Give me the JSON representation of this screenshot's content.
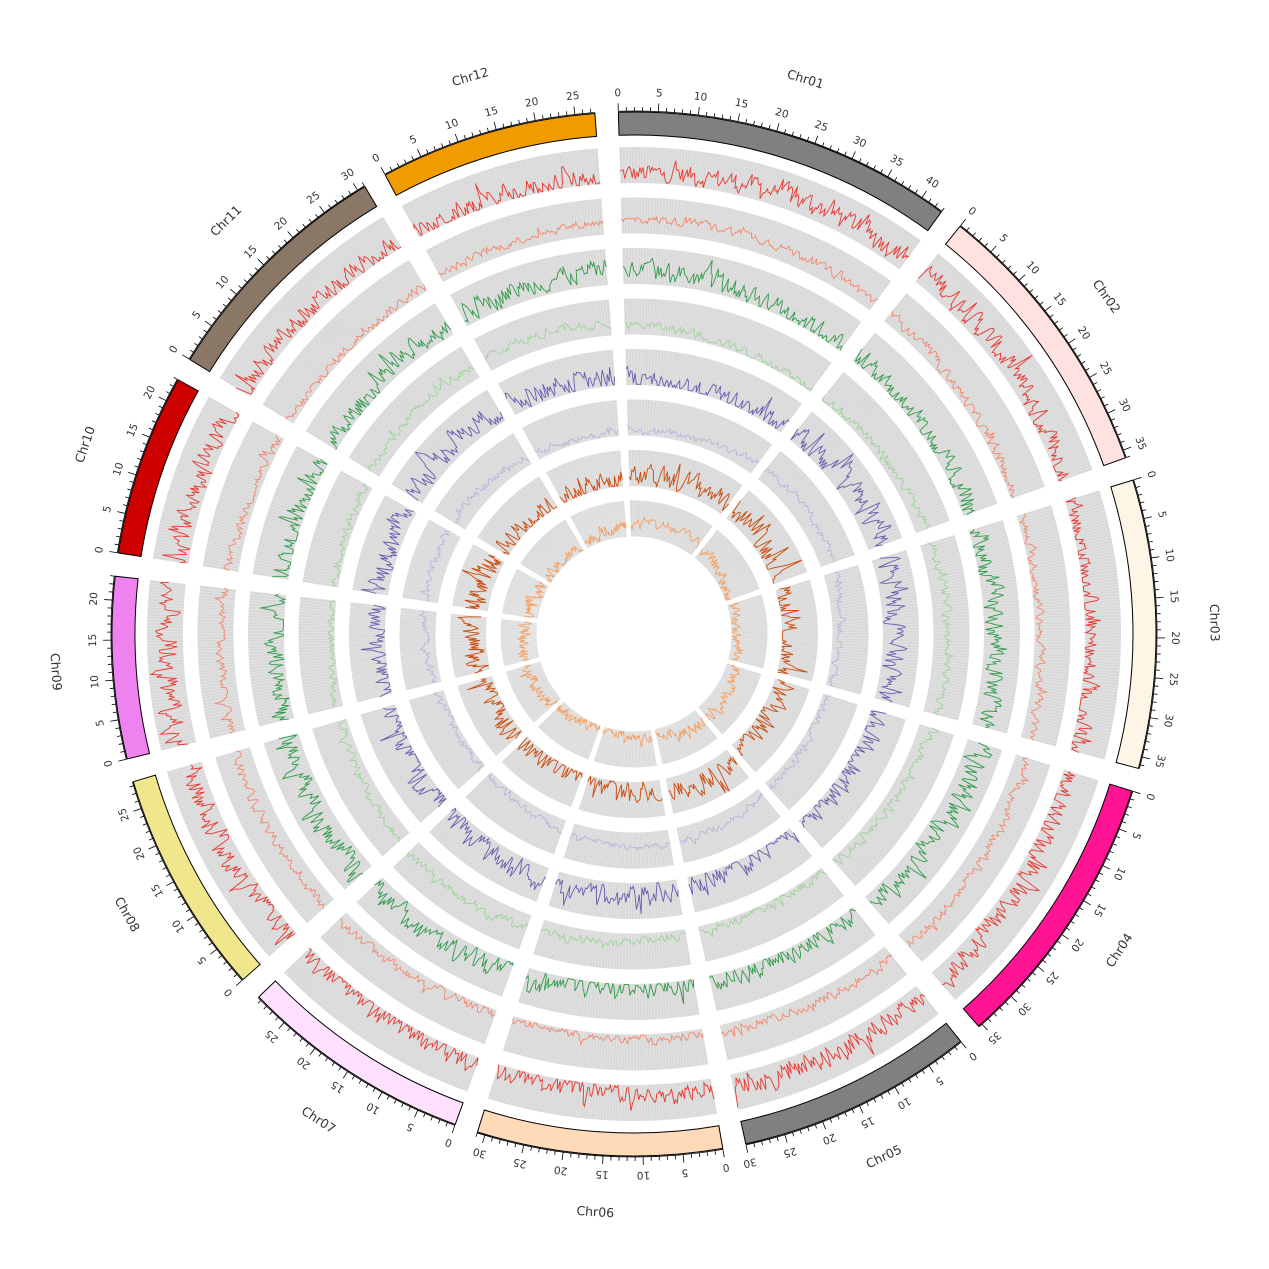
{
  "diagram": {
    "type": "circos",
    "chromosomes": [
      {
        "name": "Chr01",
        "length": 43,
        "color": "#808080"
      },
      {
        "name": "Chr02",
        "length": 36,
        "color": "#FFE1DF"
      },
      {
        "name": "Chr03",
        "length": 36.5,
        "color": "#FDF5E6"
      },
      {
        "name": "Chr04",
        "length": 35.5,
        "color": "#FF1493"
      },
      {
        "name": "Chr05",
        "length": 30,
        "color": "#808080"
      },
      {
        "name": "Chr06",
        "length": 31,
        "color": "#FFDAB9"
      },
      {
        "name": "Chr07",
        "length": 29.5,
        "color": "#FFE1FF"
      },
      {
        "name": "Chr08",
        "length": 28.5,
        "color": "#F0E68C"
      },
      {
        "name": "Chr09",
        "length": 23,
        "color": "#EE82EE"
      },
      {
        "name": "Chr10",
        "length": 23,
        "color": "#CD0000"
      },
      {
        "name": "Chr11",
        "length": 31,
        "color": "#8B7765"
      },
      {
        "name": "Chr12",
        "length": 27.5,
        "color": "#F09C00"
      }
    ],
    "tracks": [
      {
        "color": "#E8372F",
        "amplitude": 0.85
      },
      {
        "color": "#F4876C",
        "amplitude": 0.35
      },
      {
        "color": "#2E9B49",
        "amplitude": 0.85
      },
      {
        "color": "#9ED39A",
        "amplitude": 0.35
      },
      {
        "color": "#6A5BB0",
        "amplitude": 0.9
      },
      {
        "color": "#B9B4DC",
        "amplitude": 0.3
      },
      {
        "color": "#CC4A0A",
        "amplitude": 0.95
      },
      {
        "color": "#F5A162",
        "amplitude": 0.45
      }
    ],
    "track_background": "#D9D9D9"
  }
}
